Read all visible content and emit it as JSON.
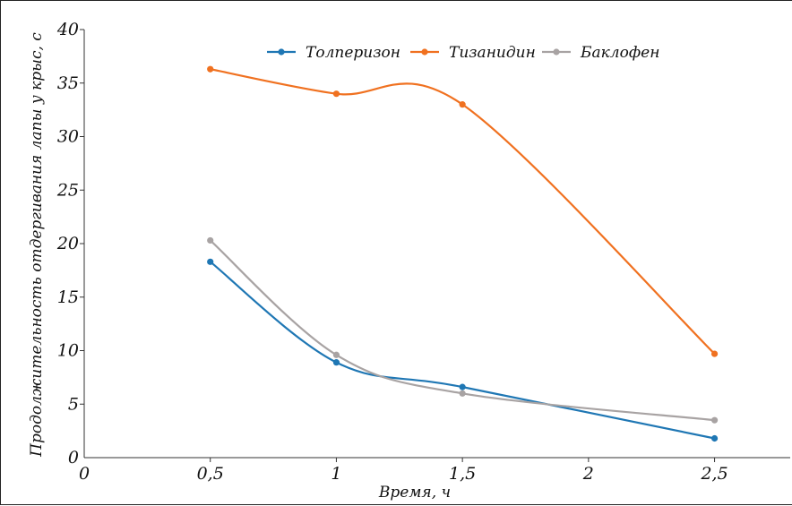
{
  "chart_data": {
    "type": "line",
    "xlabel": "Время, ч",
    "ylabel": "Продолжительность отдергивания лапы у крыс, с",
    "x_ticks": [
      "0",
      "0,5",
      "1",
      "1,5",
      "2",
      "2,5"
    ],
    "y_ticks": [
      "0",
      "5",
      "10",
      "15",
      "20",
      "25",
      "30",
      "35",
      "40"
    ],
    "xlim": [
      0,
      2.8
    ],
    "ylim": [
      0,
      40
    ],
    "x": [
      0.5,
      1,
      1.5,
      2.5
    ],
    "smooth": true,
    "grid": false,
    "legend_position": "top",
    "series": [
      {
        "name": "Толперизон",
        "color": "#1f77b4",
        "values": [
          18.3,
          8.9,
          6.6,
          1.8
        ]
      },
      {
        "name": "Тизанидин",
        "color": "#f07120",
        "values": [
          36.3,
          34.0,
          33.0,
          9.7
        ]
      },
      {
        "name": "Баклофен",
        "color": "#a8a3a3",
        "values": [
          20.3,
          9.6,
          6.0,
          3.5
        ]
      }
    ]
  }
}
